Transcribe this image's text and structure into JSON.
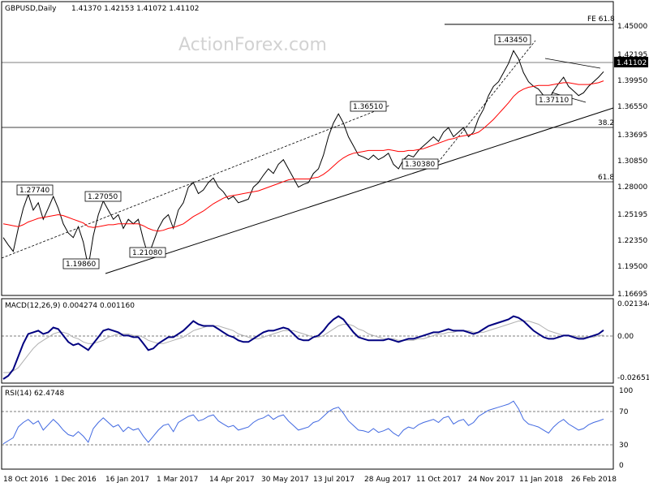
{
  "header": {
    "symbol": "GBPUSD,Daily",
    "ohlc": "1.41370 1.42153 1.41072 1.41102",
    "watermark": "ActionForex.com"
  },
  "colors": {
    "candles": "#000000",
    "sma": "#ff0000",
    "macd": "#000080",
    "signal": "#b0b0b0",
    "rsi": "#4169e1",
    "trendline": "#000000"
  },
  "chart_data": [
    {
      "type": "line",
      "panel": "price",
      "title": "GBPUSD,Daily",
      "ylim": [
        1.1669,
        1.4715
      ],
      "y_ticks": [
        "1.45000",
        "1.42195",
        "1.39950",
        "1.36550",
        "1.33695",
        "1.30850",
        "1.28000",
        "1.25195",
        "1.22350",
        "1.19500",
        "1.16695"
      ],
      "x_ticks": [
        "18 Oct 2016",
        "1 Dec 2016",
        "16 Jan 2017",
        "1 Mar 2017",
        "14 Apr 2017",
        "30 May 2017",
        "13 Jul 2017",
        "28 Aug 2017",
        "11 Oct 2017",
        "24 Nov 2017",
        "11 Jan 2018",
        "26 Feb 2018"
      ],
      "current_price": "1.41102",
      "series": [
        {
          "values": [
            1.23,
            1.222,
            1.215,
            1.24,
            1.262,
            1.277,
            1.26,
            1.268,
            1.25,
            1.262,
            1.275,
            1.262,
            1.245,
            1.235,
            1.23,
            1.242,
            1.225,
            1.198,
            1.232,
            1.255,
            1.27,
            1.26,
            1.25,
            1.255,
            1.24,
            1.25,
            1.245,
            1.25,
            1.228,
            1.21,
            1.225,
            1.24,
            1.25,
            1.255,
            1.24,
            1.26,
            1.268,
            1.285,
            1.29,
            1.278,
            1.282,
            1.29,
            1.295,
            1.285,
            1.28,
            1.272,
            1.275,
            1.268,
            1.27,
            1.272,
            1.285,
            1.29,
            1.298,
            1.305,
            1.3,
            1.31,
            1.315,
            1.305,
            1.295,
            1.285,
            1.288,
            1.29,
            1.3,
            1.305,
            1.32,
            1.34,
            1.355,
            1.365,
            1.355,
            1.34,
            1.33,
            1.32,
            1.318,
            1.315,
            1.32,
            1.315,
            1.318,
            1.322,
            1.31,
            1.305,
            1.315,
            1.32,
            1.318,
            1.325,
            1.33,
            1.335,
            1.34,
            1.335,
            1.345,
            1.35,
            1.34,
            1.345,
            1.35,
            1.34,
            1.345,
            1.36,
            1.37,
            1.385,
            1.395,
            1.4,
            1.41,
            1.42,
            1.434,
            1.425,
            1.41,
            1.4,
            1.395,
            1.392,
            1.385,
            1.38,
            1.39,
            1.398,
            1.405,
            1.395,
            1.39,
            1.385,
            1.388,
            1.395,
            1.4,
            1.405,
            1.411
          ]
        },
        {
          "values": [
            1.245,
            1.244,
            1.243,
            1.242,
            1.244,
            1.247,
            1.249,
            1.251,
            1.252,
            1.253,
            1.254,
            1.255,
            1.254,
            1.252,
            1.25,
            1.248,
            1.246,
            1.242,
            1.241,
            1.242,
            1.243,
            1.244,
            1.244,
            1.245,
            1.245,
            1.245,
            1.245,
            1.245,
            1.243,
            1.24,
            1.238,
            1.237,
            1.238,
            1.24,
            1.241,
            1.243,
            1.245,
            1.249,
            1.253,
            1.256,
            1.259,
            1.263,
            1.267,
            1.27,
            1.273,
            1.275,
            1.276,
            1.277,
            1.278,
            1.279,
            1.28,
            1.281,
            1.283,
            1.285,
            1.287,
            1.289,
            1.291,
            1.293,
            1.294,
            1.294,
            1.294,
            1.294,
            1.295,
            1.296,
            1.299,
            1.303,
            1.308,
            1.313,
            1.317,
            1.32,
            1.322,
            1.323,
            1.324,
            1.325,
            1.325,
            1.325,
            1.325,
            1.326,
            1.325,
            1.324,
            1.324,
            1.325,
            1.325,
            1.326,
            1.327,
            1.329,
            1.331,
            1.333,
            1.335,
            1.337,
            1.338,
            1.34,
            1.341,
            1.342,
            1.343,
            1.345,
            1.349,
            1.354,
            1.359,
            1.365,
            1.371,
            1.377,
            1.384,
            1.389,
            1.392,
            1.394,
            1.395,
            1.396,
            1.396,
            1.396,
            1.397,
            1.398,
            1.399,
            1.399,
            1.398,
            1.397,
            1.397,
            1.397,
            1.398,
            1.399,
            1.401
          ]
        }
      ]
    },
    {
      "type": "line",
      "panel": "macd",
      "title": "MACD(12,26,9) 0.004274 0.001160",
      "ylim": [
        -0.02651,
        0.02134
      ],
      "y_ticks": [
        "0.021344",
        "0.00",
        "-0.026514"
      ],
      "series": [
        {
          "values": [
            -0.026,
            -0.024,
            -0.02,
            -0.012,
            -0.004,
            0.002,
            0.003,
            0.004,
            0.002,
            0.003,
            0.006,
            0.005,
            0.001,
            -0.003,
            -0.005,
            -0.004,
            -0.006,
            -0.008,
            -0.004,
            0.0,
            0.004,
            0.005,
            0.004,
            0.003,
            0.001,
            0.001,
            0.0,
            0.0,
            -0.004,
            -0.008,
            -0.007,
            -0.004,
            -0.002,
            0.0,
            0.0,
            0.002,
            0.004,
            0.007,
            0.01,
            0.008,
            0.007,
            0.007,
            0.007,
            0.005,
            0.003,
            0.001,
            0.0,
            -0.002,
            -0.003,
            -0.003,
            -0.001,
            0.001,
            0.003,
            0.004,
            0.004,
            0.005,
            0.006,
            0.005,
            0.002,
            -0.001,
            -0.002,
            -0.002,
            0.0,
            0.001,
            0.004,
            0.008,
            0.011,
            0.013,
            0.011,
            0.007,
            0.003,
            0.0,
            -0.001,
            -0.002,
            -0.002,
            -0.002,
            -0.002,
            -0.001,
            -0.002,
            -0.003,
            -0.002,
            -0.001,
            -0.001,
            0.0,
            0.001,
            0.002,
            0.003,
            0.003,
            0.004,
            0.005,
            0.004,
            0.004,
            0.004,
            0.003,
            0.002,
            0.003,
            0.005,
            0.007,
            0.008,
            0.009,
            0.01,
            0.011,
            0.013,
            0.012,
            0.01,
            0.007,
            0.004,
            0.002,
            0.0,
            -0.001,
            -0.001,
            0.0,
            0.001,
            0.001,
            0.0,
            -0.001,
            -0.001,
            0.0,
            0.001,
            0.002,
            0.0043
          ]
        },
        {
          "values": [
            -0.022,
            -0.022,
            -0.021,
            -0.019,
            -0.015,
            -0.011,
            -0.007,
            -0.004,
            -0.002,
            0.0,
            0.002,
            0.003,
            0.003,
            0.002,
            0.0,
            -0.001,
            -0.003,
            -0.004,
            -0.004,
            -0.003,
            -0.002,
            0.0,
            0.001,
            0.002,
            0.002,
            0.002,
            0.001,
            0.001,
            0.0,
            -0.002,
            -0.003,
            -0.004,
            -0.004,
            -0.003,
            -0.002,
            -0.001,
            0.0,
            0.002,
            0.004,
            0.005,
            0.006,
            0.007,
            0.007,
            0.007,
            0.006,
            0.005,
            0.004,
            0.002,
            0.001,
            0.0,
            -0.001,
            -0.001,
            0.0,
            0.001,
            0.002,
            0.003,
            0.004,
            0.004,
            0.004,
            0.003,
            0.002,
            0.001,
            0.0,
            0.0,
            0.001,
            0.003,
            0.005,
            0.007,
            0.008,
            0.008,
            0.007,
            0.005,
            0.004,
            0.002,
            0.001,
            0.0,
            -0.001,
            -0.001,
            -0.001,
            -0.002,
            -0.002,
            -0.002,
            -0.002,
            -0.001,
            -0.001,
            0.0,
            0.001,
            0.002,
            0.002,
            0.003,
            0.003,
            0.004,
            0.004,
            0.004,
            0.003,
            0.003,
            0.003,
            0.004,
            0.005,
            0.006,
            0.007,
            0.008,
            0.009,
            0.01,
            0.01,
            0.01,
            0.009,
            0.008,
            0.006,
            0.004,
            0.003,
            0.002,
            0.001,
            0.001,
            0.001,
            0.0,
            0.0,
            0.0,
            0.0,
            0.001,
            0.0012
          ]
        }
      ]
    },
    {
      "type": "line",
      "panel": "rsi",
      "title": "RSI(14) 62.4748",
      "ylim": [
        0,
        100
      ],
      "y_ticks": [
        "100",
        "70",
        "30",
        "0"
      ],
      "series": [
        {
          "values": [
            30,
            34,
            38,
            52,
            58,
            62,
            56,
            60,
            48,
            55,
            62,
            56,
            48,
            42,
            40,
            46,
            40,
            32,
            50,
            58,
            64,
            58,
            52,
            55,
            46,
            52,
            48,
            50,
            40,
            32,
            40,
            48,
            54,
            56,
            46,
            58,
            62,
            66,
            68,
            60,
            62,
            66,
            68,
            60,
            56,
            52,
            54,
            48,
            50,
            52,
            58,
            62,
            64,
            68,
            62,
            66,
            68,
            60,
            54,
            48,
            50,
            52,
            58,
            60,
            66,
            72,
            76,
            78,
            70,
            60,
            54,
            48,
            47,
            45,
            50,
            45,
            47,
            50,
            44,
            40,
            48,
            52,
            50,
            55,
            58,
            60,
            62,
            58,
            64,
            66,
            56,
            60,
            62,
            54,
            58,
            66,
            70,
            74,
            76,
            78,
            80,
            82,
            86,
            76,
            62,
            56,
            54,
            52,
            48,
            44,
            52,
            58,
            62,
            56,
            52,
            48,
            50,
            55,
            58,
            60,
            62.5
          ]
        }
      ]
    }
  ],
  "annotations": {
    "price_labels": [
      "1.27740",
      "1.27050",
      "1.19860",
      "1.21080",
      "1.36510",
      "1.30380",
      "1.43450",
      "1.37110"
    ],
    "fib_labels": [
      "FE 61.8",
      "38.2",
      "61.8"
    ]
  }
}
